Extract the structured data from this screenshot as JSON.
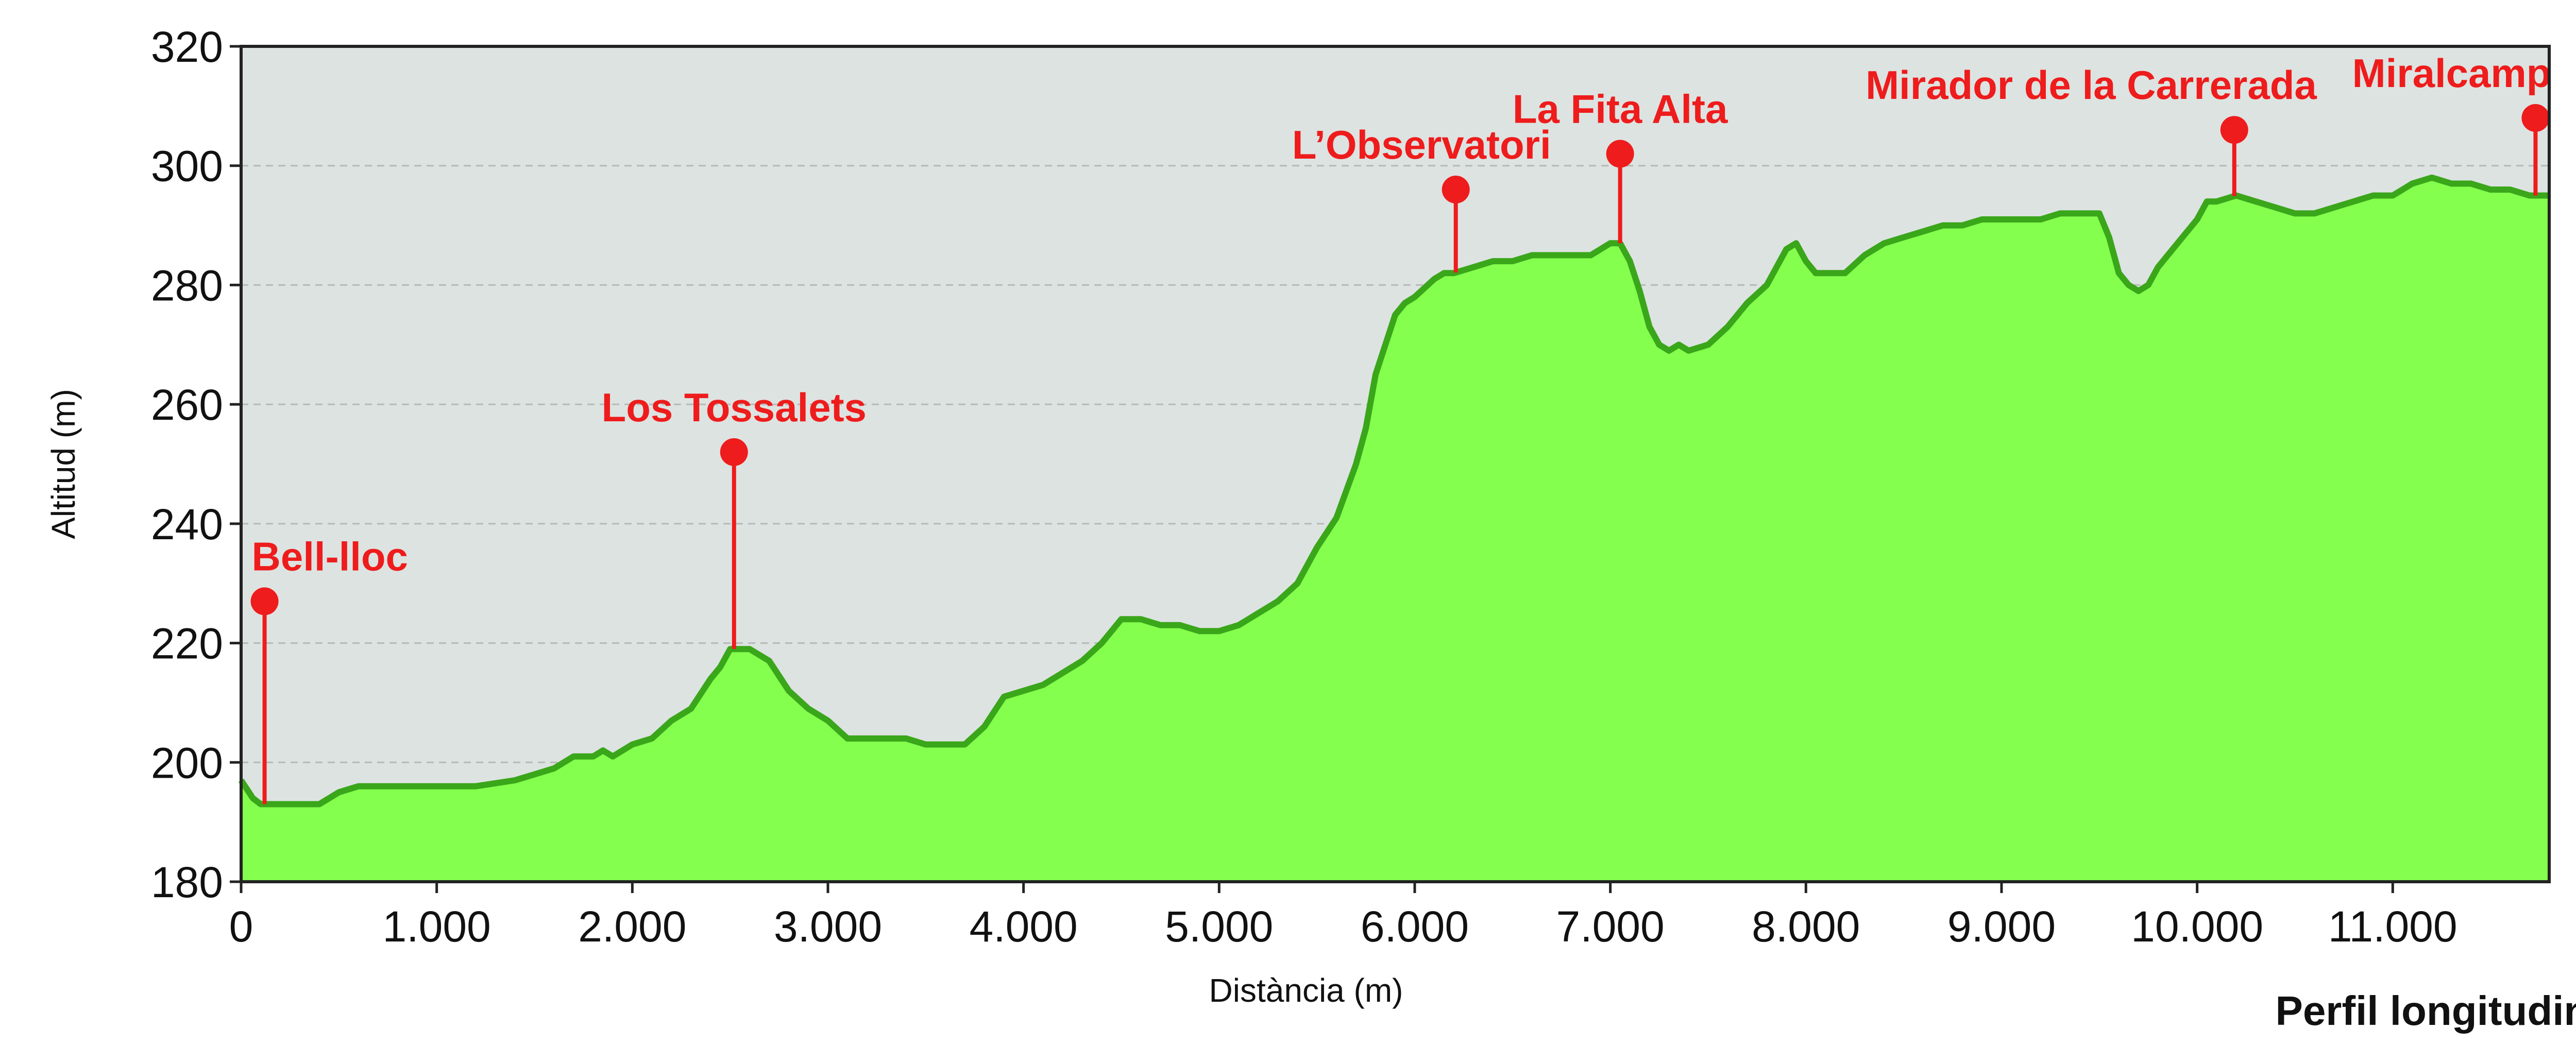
{
  "chart_data": {
    "type": "area",
    "title": "Perfil longitudinal",
    "xlabel": "Distància (m)",
    "ylabel": "Altitud (m)",
    "xlim": [
      0,
      11800
    ],
    "ylim": [
      180,
      320
    ],
    "x_ticks": [
      0,
      1000,
      2000,
      3000,
      4000,
      5000,
      6000,
      7000,
      8000,
      9000,
      10000,
      11000
    ],
    "x_tick_labels": [
      "0",
      "1.000",
      "2.000",
      "3.000",
      "4.000",
      "5.000",
      "6.000",
      "7.000",
      "8.000",
      "9.000",
      "10.000",
      "11.000"
    ],
    "y_ticks": [
      180,
      200,
      220,
      240,
      260,
      280,
      300,
      320
    ],
    "y_tick_labels": [
      "180",
      "200",
      "220",
      "240",
      "260",
      "280",
      "300",
      "320"
    ],
    "grid": "horizontal dashed",
    "colors": {
      "plot_background": "#dde3e1",
      "area_fill": "#84ff4e",
      "area_line": "#3aa61a",
      "marker": "#ee1c1c",
      "label": "#ee1c1c"
    },
    "profile": {
      "x": [
        0,
        60,
        100,
        200,
        300,
        400,
        500,
        600,
        700,
        800,
        900,
        1000,
        1200,
        1400,
        1500,
        1600,
        1700,
        1800,
        1850,
        1900,
        2000,
        2100,
        2200,
        2300,
        2400,
        2450,
        2500,
        2550,
        2600,
        2700,
        2800,
        2900,
        3000,
        3100,
        3200,
        3300,
        3400,
        3500,
        3600,
        3700,
        3800,
        3900,
        4000,
        4100,
        4200,
        4300,
        4400,
        4500,
        4600,
        4700,
        4800,
        4900,
        5000,
        5100,
        5200,
        5300,
        5400,
        5500,
        5600,
        5700,
        5750,
        5800,
        5900,
        5950,
        6000,
        6100,
        6150,
        6200,
        6300,
        6400,
        6500,
        6600,
        6700,
        6800,
        6900,
        7000,
        7050,
        7100,
        7150,
        7200,
        7250,
        7300,
        7350,
        7400,
        7500,
        7600,
        7700,
        7800,
        7900,
        7950,
        8000,
        8050,
        8100,
        8200,
        8300,
        8400,
        8500,
        8600,
        8700,
        8800,
        8900,
        9000,
        9100,
        9200,
        9300,
        9400,
        9500,
        9550,
        9600,
        9650,
        9700,
        9750,
        9800,
        9900,
        10000,
        10050,
        10100,
        10200,
        10300,
        10400,
        10500,
        10600,
        10700,
        10800,
        10900,
        11000,
        11050,
        11100,
        11200,
        11300,
        11400,
        11500,
        11600,
        11700,
        11800
      ],
      "y": [
        197,
        194,
        193,
        193,
        193,
        193,
        195,
        196,
        196,
        196,
        196,
        196,
        196,
        197,
        198,
        199,
        201,
        201,
        202,
        201,
        203,
        204,
        207,
        209,
        214,
        216,
        219,
        219,
        219,
        217,
        212,
        209,
        207,
        204,
        204,
        204,
        204,
        203,
        203,
        203,
        206,
        211,
        212,
        213,
        215,
        217,
        220,
        224,
        224,
        223,
        223,
        222,
        222,
        223,
        225,
        227,
        230,
        236,
        241,
        250,
        256,
        265,
        275,
        277,
        278,
        281,
        282,
        282,
        283,
        284,
        284,
        285,
        285,
        285,
        285,
        287,
        287,
        284,
        279,
        273,
        270,
        269,
        270,
        269,
        270,
        273,
        277,
        280,
        286,
        287,
        284,
        282,
        282,
        282,
        285,
        287,
        288,
        289,
        290,
        290,
        291,
        291,
        291,
        291,
        292,
        292,
        292,
        288,
        282,
        280,
        279,
        280,
        283,
        287,
        291,
        294,
        294,
        295,
        294,
        293,
        292,
        292,
        293,
        294,
        295,
        295,
        296,
        297,
        298,
        297,
        297,
        296,
        296,
        295,
        295
      ]
    },
    "waypoints": [
      {
        "name": "Bell-lloc",
        "x": 120,
        "top": 227
      },
      {
        "name": "Los Tossalets",
        "x": 2520,
        "top": 252
      },
      {
        "name": "L’Observatori",
        "x": 6210,
        "top": 296
      },
      {
        "name": "La Fita Alta",
        "x": 7050,
        "top": 302
      },
      {
        "name": "Mirador de la Carrerada",
        "x": 10190,
        "top": 306
      },
      {
        "name": "Miralcamp",
        "x": 11730,
        "top": 308
      }
    ]
  }
}
